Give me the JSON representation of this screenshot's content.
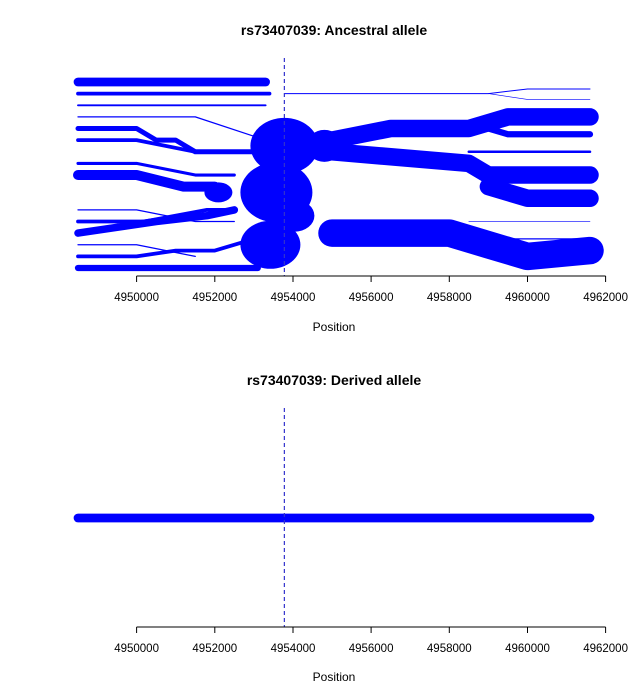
{
  "colors": {
    "series": "#0000ff",
    "marker": "#3333cc",
    "axis": "#000000"
  },
  "chart_data": [
    {
      "type": "line",
      "title": "rs73407039: Ancestral allele",
      "xlabel": "Position",
      "ylabel": "",
      "xlim": [
        4948500,
        4961600
      ],
      "x_ticks": [
        4950000,
        4952000,
        4954000,
        4956000,
        4958000,
        4960000,
        4962000
      ],
      "tick_labels": [
        "4950000",
        "4952000",
        "4954000",
        "4956000",
        "4958000",
        "4960000",
        "4962000"
      ],
      "marker_position": 4953780,
      "axes": "x-only",
      "grid": false,
      "legend": "none",
      "series": [
        {
          "x": [
            4948500,
            4953300
          ],
          "y": [
            1,
            1
          ],
          "thickness": 7
        },
        {
          "x": [
            4948500,
            4953400
          ],
          "y": [
            2,
            2
          ],
          "thickness": 3
        },
        {
          "x": [
            4948500,
            4953300
          ],
          "y": [
            3,
            3
          ],
          "thickness": 1.5
        },
        {
          "x": [
            4948500,
            4951500,
            4953300
          ],
          "y": [
            4,
            4,
            6
          ],
          "thickness": 1
        },
        {
          "x": [
            4948500,
            4950000,
            4950500,
            4951000,
            4951500,
            4953000
          ],
          "y": [
            5,
            5,
            6,
            6,
            7,
            7
          ],
          "thickness": 4
        },
        {
          "x": [
            4948500,
            4950000,
            4951500
          ],
          "y": [
            6,
            6,
            7
          ],
          "thickness": 3
        },
        {
          "x": [
            4948500,
            4950000,
            4951500,
            4952500
          ],
          "y": [
            8,
            8,
            9,
            9
          ],
          "thickness": 2.5
        },
        {
          "x": [
            4948500,
            4950000,
            4951200,
            4952000
          ],
          "y": [
            9,
            9,
            10,
            10
          ],
          "thickness": 8
        },
        {
          "x": [
            4948500,
            4950000,
            4951500,
            4952500
          ],
          "y": [
            12,
            12,
            13,
            13
          ],
          "thickness": 1
        },
        {
          "x": [
            4948500,
            4950200,
            4951800,
            4952500
          ],
          "y": [
            13,
            13,
            12,
            12
          ],
          "thickness": 3
        },
        {
          "x": [
            4948500,
            4949500,
            4950500,
            4951800,
            4952500
          ],
          "y": [
            14,
            13.5,
            13,
            12.5,
            12
          ],
          "thickness": 6
        },
        {
          "x": [
            4948500,
            4950000,
            4951500
          ],
          "y": [
            15,
            15,
            16
          ],
          "thickness": 1
        },
        {
          "x": [
            4948500,
            4950000,
            4951000,
            4952000,
            4953000
          ],
          "y": [
            16,
            16,
            15.5,
            15.5,
            14.5
          ],
          "thickness": 3
        },
        {
          "x": [
            4948500,
            4953100
          ],
          "y": [
            17,
            17
          ],
          "thickness": 5
        },
        {
          "x": [
            4953800,
            4955000,
            4959000,
            4960000,
            4961600
          ],
          "y": [
            2,
            2,
            2,
            1.6,
            1.6
          ],
          "thickness": 0.8
        },
        {
          "x": [
            4959000,
            4960000,
            4961600
          ],
          "y": [
            2,
            2.5,
            2.5
          ],
          "thickness": 0.5
        },
        {
          "x": [
            4955000,
            4956500,
            4958500,
            4959500,
            4961600
          ],
          "y": [
            6,
            5,
            5,
            4,
            4
          ],
          "thickness": 14
        },
        {
          "x": [
            4959000,
            4959500,
            4961600
          ],
          "y": [
            5,
            5.5,
            5.5
          ],
          "thickness": 5
        },
        {
          "x": [
            4958500,
            4959000,
            4961600
          ],
          "y": [
            7,
            7,
            7
          ],
          "thickness": 2
        },
        {
          "x": [
            4955000,
            4958500,
            4959000,
            4961600
          ],
          "y": [
            7,
            8,
            9,
            9
          ],
          "thickness": 14
        },
        {
          "x": [
            4959000,
            4960000,
            4961600
          ],
          "y": [
            10,
            11,
            11
          ],
          "thickness": 14
        },
        {
          "x": [
            4958500,
            4959000,
            4961600
          ],
          "y": [
            14,
            14.5,
            14.5
          ],
          "thickness": 1
        },
        {
          "x": [
            4958500,
            4959500,
            4961600
          ],
          "y": [
            13,
            13,
            13
          ],
          "thickness": 0.5
        },
        {
          "x": [
            4955000,
            4958000,
            4959000,
            4960000,
            4961600
          ],
          "y": [
            14,
            14,
            15,
            16,
            15.5
          ],
          "thickness": 22
        },
        {
          "x": [
            4959000,
            4959800,
            4960500,
            4961600
          ],
          "y": [
            15,
            15,
            16,
            16
          ],
          "thickness": 2.5
        },
        {
          "x": [
            4960000,
            4961600
          ],
          "y": [
            16.5,
            16.5
          ],
          "thickness": 1
        }
      ]
    },
    {
      "type": "line",
      "title": "rs73407039: Derived allele",
      "xlabel": "Position",
      "ylabel": "",
      "xlim": [
        4948500,
        4961600
      ],
      "x_ticks": [
        4950000,
        4952000,
        4954000,
        4956000,
        4958000,
        4960000,
        4962000
      ],
      "tick_labels": [
        "4950000",
        "4952000",
        "4954000",
        "4956000",
        "4958000",
        "4960000",
        "4962000"
      ],
      "marker_position": 4953780,
      "axes": "x-only",
      "grid": false,
      "legend": "none",
      "series": [
        {
          "x": [
            4948500,
            4961600
          ],
          "y": [
            1,
            1
          ],
          "thickness": 7
        }
      ]
    }
  ]
}
